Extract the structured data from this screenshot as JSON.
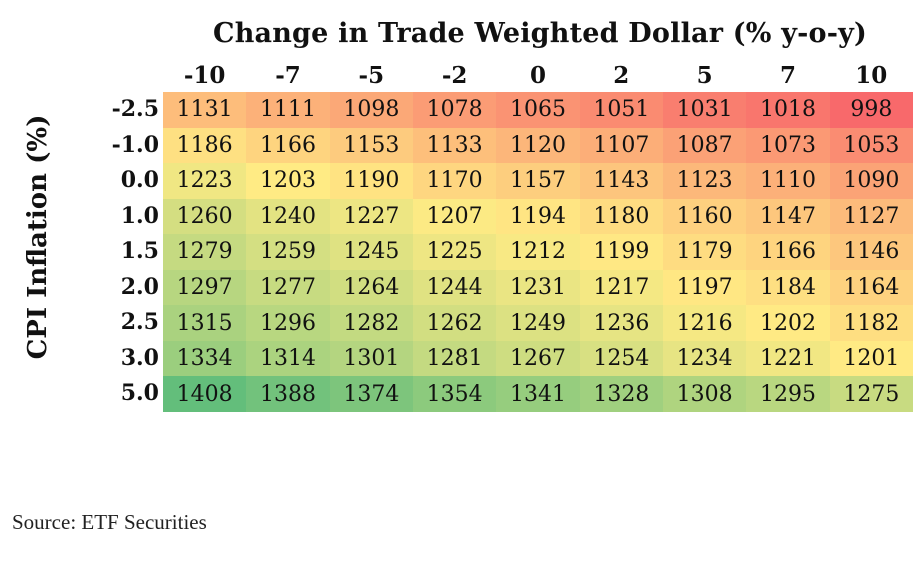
{
  "chart_data": {
    "type": "heatmap",
    "title": "Change in Trade Weighted Dollar (% y-o-y)",
    "ylabel": "CPI Inflation (%)",
    "x": [
      "-10",
      "-7",
      "-5",
      "-2",
      "0",
      "2",
      "5",
      "7",
      "10"
    ],
    "y": [
      "-2.5",
      "-1.0",
      "0.0",
      "1.0",
      "1.5",
      "2.0",
      "2.5",
      "3.0",
      "5.0"
    ],
    "values": [
      [
        1131,
        1111,
        1098,
        1078,
        1065,
        1051,
        1031,
        1018,
        998
      ],
      [
        1186,
        1166,
        1153,
        1133,
        1120,
        1107,
        1087,
        1073,
        1053
      ],
      [
        1223,
        1203,
        1190,
        1170,
        1157,
        1143,
        1123,
        1110,
        1090
      ],
      [
        1260,
        1240,
        1227,
        1207,
        1194,
        1180,
        1160,
        1147,
        1127
      ],
      [
        1279,
        1259,
        1245,
        1225,
        1212,
        1199,
        1179,
        1166,
        1146
      ],
      [
        1297,
        1277,
        1264,
        1244,
        1231,
        1217,
        1197,
        1184,
        1164
      ],
      [
        1315,
        1296,
        1282,
        1262,
        1249,
        1236,
        1216,
        1202,
        1182
      ],
      [
        1334,
        1314,
        1301,
        1281,
        1267,
        1254,
        1234,
        1221,
        1201
      ],
      [
        1408,
        1388,
        1374,
        1354,
        1341,
        1328,
        1308,
        1295,
        1275
      ]
    ],
    "color_scale": [
      "#f8696b",
      "#ffeb84",
      "#63be7b"
    ]
  },
  "source": "Source: ETF Securities"
}
